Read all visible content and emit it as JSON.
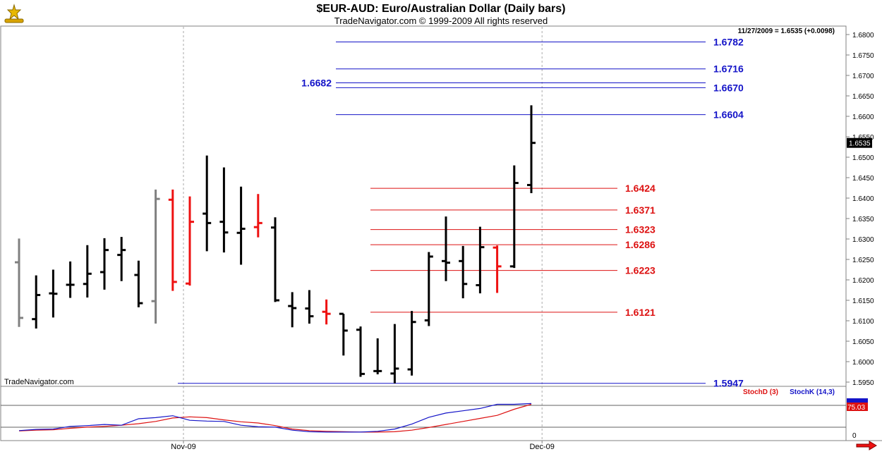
{
  "header": {
    "title": "$EUR-AUD:  Euro/Australian Dollar  (Daily bars)",
    "subtitle": "TradeNavigator.com © 1999-2009 All rights reserved",
    "last_quote": "11/27/2009 = 1.6535 (+0.0098)",
    "watermark": "TradeNavigator.com"
  },
  "colors": {
    "up_bar": "#000000",
    "down_bar": "#ee1111",
    "gray_bar": "#808080",
    "resistance": "#1414c8",
    "support": "#dd1111",
    "stochD": "#dd1111",
    "stochK": "#1414c8"
  },
  "chart_data": [
    {
      "type": "ohlc",
      "title": "$EUR-AUD:  Euro/Australian Dollar  (Daily bars)",
      "ylim": [
        1.594,
        1.682
      ],
      "y_ticks": [
        "1.6800",
        "1.6750",
        "1.6700",
        "1.6650",
        "1.6600",
        "1.6550",
        "1.6500",
        "1.6450",
        "1.6400",
        "1.6350",
        "1.6300",
        "1.6250",
        "1.6200",
        "1.6150",
        "1.6100",
        "1.6050",
        "1.6000",
        "1.5950"
      ],
      "x_labels": [
        {
          "label": "Nov-09",
          "bar": 10
        },
        {
          "label": "Dec-09",
          "bar": 31
        }
      ],
      "last_price_label": "1.6535",
      "bars": [
        {
          "o": 1.6243,
          "h": 1.6301,
          "l": 1.6085,
          "c": 1.6107,
          "col": "gray"
        },
        {
          "o": 1.6104,
          "h": 1.6211,
          "l": 1.6081,
          "c": 1.6163,
          "col": "black"
        },
        {
          "o": 1.6167,
          "h": 1.6225,
          "l": 1.6108,
          "c": 1.6166,
          "col": "black"
        },
        {
          "o": 1.6188,
          "h": 1.6245,
          "l": 1.6156,
          "c": 1.6188,
          "col": "black"
        },
        {
          "o": 1.619,
          "h": 1.6285,
          "l": 1.6157,
          "c": 1.6215,
          "col": "black"
        },
        {
          "o": 1.6219,
          "h": 1.6302,
          "l": 1.6176,
          "c": 1.6273,
          "col": "black"
        },
        {
          "o": 1.6261,
          "h": 1.6305,
          "l": 1.6197,
          "c": 1.6273,
          "col": "black"
        },
        {
          "o": 1.6212,
          "h": 1.6247,
          "l": 1.6133,
          "c": 1.6143,
          "col": "black"
        },
        {
          "o": 1.6148,
          "h": 1.6421,
          "l": 1.6093,
          "c": 1.6398,
          "col": "gray"
        },
        {
          "o": 1.6396,
          "h": 1.6421,
          "l": 1.6173,
          "c": 1.6195,
          "col": "red"
        },
        {
          "o": 1.6191,
          "h": 1.6404,
          "l": 1.6186,
          "c": 1.6342,
          "col": "red"
        },
        {
          "o": 1.6362,
          "h": 1.6504,
          "l": 1.627,
          "c": 1.6339,
          "col": "black"
        },
        {
          "o": 1.6342,
          "h": 1.6475,
          "l": 1.6267,
          "c": 1.6316,
          "col": "black"
        },
        {
          "o": 1.6315,
          "h": 1.6428,
          "l": 1.6237,
          "c": 1.6325,
          "col": "black"
        },
        {
          "o": 1.6329,
          "h": 1.641,
          "l": 1.6304,
          "c": 1.6339,
          "col": "red"
        },
        {
          "o": 1.6328,
          "h": 1.6353,
          "l": 1.6146,
          "c": 1.615,
          "col": "black"
        },
        {
          "o": 1.6136,
          "h": 1.617,
          "l": 1.6084,
          "c": 1.6131,
          "col": "black"
        },
        {
          "o": 1.613,
          "h": 1.6175,
          "l": 1.6093,
          "c": 1.6111,
          "col": "black"
        },
        {
          "o": 1.6122,
          "h": 1.6152,
          "l": 1.6091,
          "c": 1.6117,
          "col": "red"
        },
        {
          "o": 1.6117,
          "h": 1.6117,
          "l": 1.6015,
          "c": 1.6076,
          "col": "black"
        },
        {
          "o": 1.6078,
          "h": 1.6086,
          "l": 1.5963,
          "c": 1.597,
          "col": "black"
        },
        {
          "o": 1.5977,
          "h": 1.6057,
          "l": 1.5969,
          "c": 1.5977,
          "col": "black"
        },
        {
          "o": 1.5971,
          "h": 1.6092,
          "l": 1.5947,
          "c": 1.5983,
          "col": "black"
        },
        {
          "o": 1.5981,
          "h": 1.6124,
          "l": 1.5966,
          "c": 1.6097,
          "col": "black"
        },
        {
          "o": 1.6101,
          "h": 1.6268,
          "l": 1.6087,
          "c": 1.6257,
          "col": "black"
        },
        {
          "o": 1.6246,
          "h": 1.6355,
          "l": 1.6197,
          "c": 1.6242,
          "col": "black"
        },
        {
          "o": 1.6246,
          "h": 1.6283,
          "l": 1.6155,
          "c": 1.619,
          "col": "black"
        },
        {
          "o": 1.6187,
          "h": 1.633,
          "l": 1.6167,
          "c": 1.628,
          "col": "black"
        },
        {
          "o": 1.6279,
          "h": 1.6284,
          "l": 1.6168,
          "c": 1.6233,
          "col": "red"
        },
        {
          "o": 1.6233,
          "h": 1.648,
          "l": 1.6229,
          "c": 1.6437,
          "col": "black"
        },
        {
          "o": 1.6432,
          "h": 1.6627,
          "l": 1.6412,
          "c": 1.6535,
          "col": "black"
        }
      ],
      "levels": [
        {
          "value": "1.6782",
          "y": 1.6782,
          "kind": "resistance"
        },
        {
          "value": "1.6716",
          "y": 1.6716,
          "kind": "resistance"
        },
        {
          "value": "1.6682",
          "y": 1.6682,
          "kind": "resistance",
          "label_side": "left"
        },
        {
          "value": "1.6670",
          "y": 1.667,
          "kind": "resistance"
        },
        {
          "value": "1.6604",
          "y": 1.6604,
          "kind": "resistance"
        },
        {
          "value": "1.6424",
          "y": 1.6424,
          "kind": "support"
        },
        {
          "value": "1.6371",
          "y": 1.6371,
          "kind": "support"
        },
        {
          "value": "1.6323",
          "y": 1.6323,
          "kind": "support"
        },
        {
          "value": "1.6286",
          "y": 1.6286,
          "kind": "support"
        },
        {
          "value": "1.6223",
          "y": 1.6223,
          "kind": "support"
        },
        {
          "value": "1.6121",
          "y": 1.6121,
          "kind": "support"
        },
        {
          "value": "1.5947",
          "y": 1.5947,
          "kind": "resistance"
        }
      ]
    },
    {
      "type": "line",
      "ylim": [
        0,
        100
      ],
      "y_ticks": [
        "0"
      ],
      "last_value_label": "75.03",
      "series": [
        {
          "name": "StochD (3)",
          "values": [
            5,
            7,
            8,
            12,
            15,
            17,
            20,
            24,
            30,
            39,
            42,
            40,
            34,
            29,
            26,
            19,
            10,
            6,
            4,
            3,
            2,
            2,
            3,
            7,
            14,
            22,
            30,
            38,
            46,
            62,
            75
          ]
        },
        {
          "name": "StochK (14,3)",
          "values": [
            6,
            9,
            10,
            17,
            19,
            22,
            20,
            37,
            40,
            45,
            33,
            31,
            30,
            20,
            16,
            15,
            7,
            3,
            2,
            2,
            2,
            4,
            10,
            23,
            41,
            52,
            58,
            64,
            75,
            75,
            77
          ]
        }
      ]
    }
  ]
}
